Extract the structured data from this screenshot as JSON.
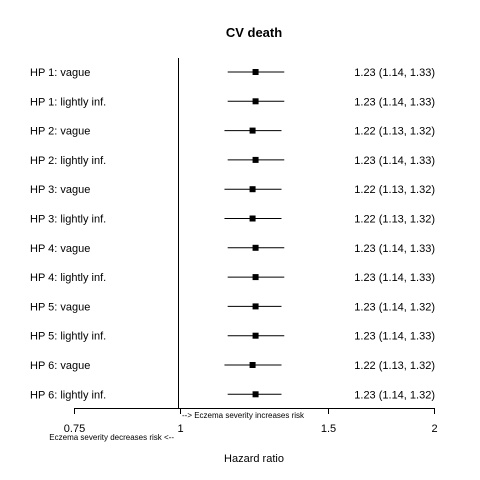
{
  "chart_data": {
    "type": "forest",
    "title": "CV death",
    "xlabel": "Hazard ratio",
    "xlim": [
      0.75,
      2
    ],
    "x_scale": "log",
    "reference_line": 1,
    "ticks": [
      0.75,
      1,
      1.5,
      2
    ],
    "tick_labels": [
      "0.75",
      "1",
      "1.5",
      "2"
    ],
    "annotations": {
      "right": "--> Eczema severity increases risk",
      "left": "Eczema severity decreases risk <--"
    },
    "rows": [
      {
        "label": "HP 1: vague",
        "hr": 1.23,
        "lo": 1.14,
        "hi": 1.33,
        "text": "1.23 (1.14, 1.33)"
      },
      {
        "label": "HP 1: lightly inf.",
        "hr": 1.23,
        "lo": 1.14,
        "hi": 1.33,
        "text": "1.23 (1.14, 1.33)"
      },
      {
        "label": "HP 2: vague",
        "hr": 1.22,
        "lo": 1.13,
        "hi": 1.32,
        "text": "1.22 (1.13, 1.32)"
      },
      {
        "label": "HP 2: lightly inf.",
        "hr": 1.23,
        "lo": 1.14,
        "hi": 1.33,
        "text": "1.23 (1.14, 1.33)"
      },
      {
        "label": "HP 3: vague",
        "hr": 1.22,
        "lo": 1.13,
        "hi": 1.32,
        "text": "1.22 (1.13, 1.32)"
      },
      {
        "label": "HP 3: lightly inf.",
        "hr": 1.22,
        "lo": 1.13,
        "hi": 1.32,
        "text": "1.22 (1.13, 1.32)"
      },
      {
        "label": "HP 4: vague",
        "hr": 1.23,
        "lo": 1.14,
        "hi": 1.33,
        "text": "1.23 (1.14, 1.33)"
      },
      {
        "label": "HP 4: lightly inf.",
        "hr": 1.23,
        "lo": 1.14,
        "hi": 1.33,
        "text": "1.23 (1.14, 1.33)"
      },
      {
        "label": "HP 5: vague",
        "hr": 1.23,
        "lo": 1.14,
        "hi": 1.32,
        "text": "1.23 (1.14, 1.32)"
      },
      {
        "label": "HP 5: lightly inf.",
        "hr": 1.23,
        "lo": 1.14,
        "hi": 1.33,
        "text": "1.23 (1.14, 1.33)"
      },
      {
        "label": "HP 6: vague",
        "hr": 1.22,
        "lo": 1.13,
        "hi": 1.32,
        "text": "1.22 (1.13, 1.32)"
      },
      {
        "label": "HP 6: lightly inf.",
        "hr": 1.23,
        "lo": 1.14,
        "hi": 1.32,
        "text": "1.23 (1.14, 1.32)"
      }
    ]
  }
}
